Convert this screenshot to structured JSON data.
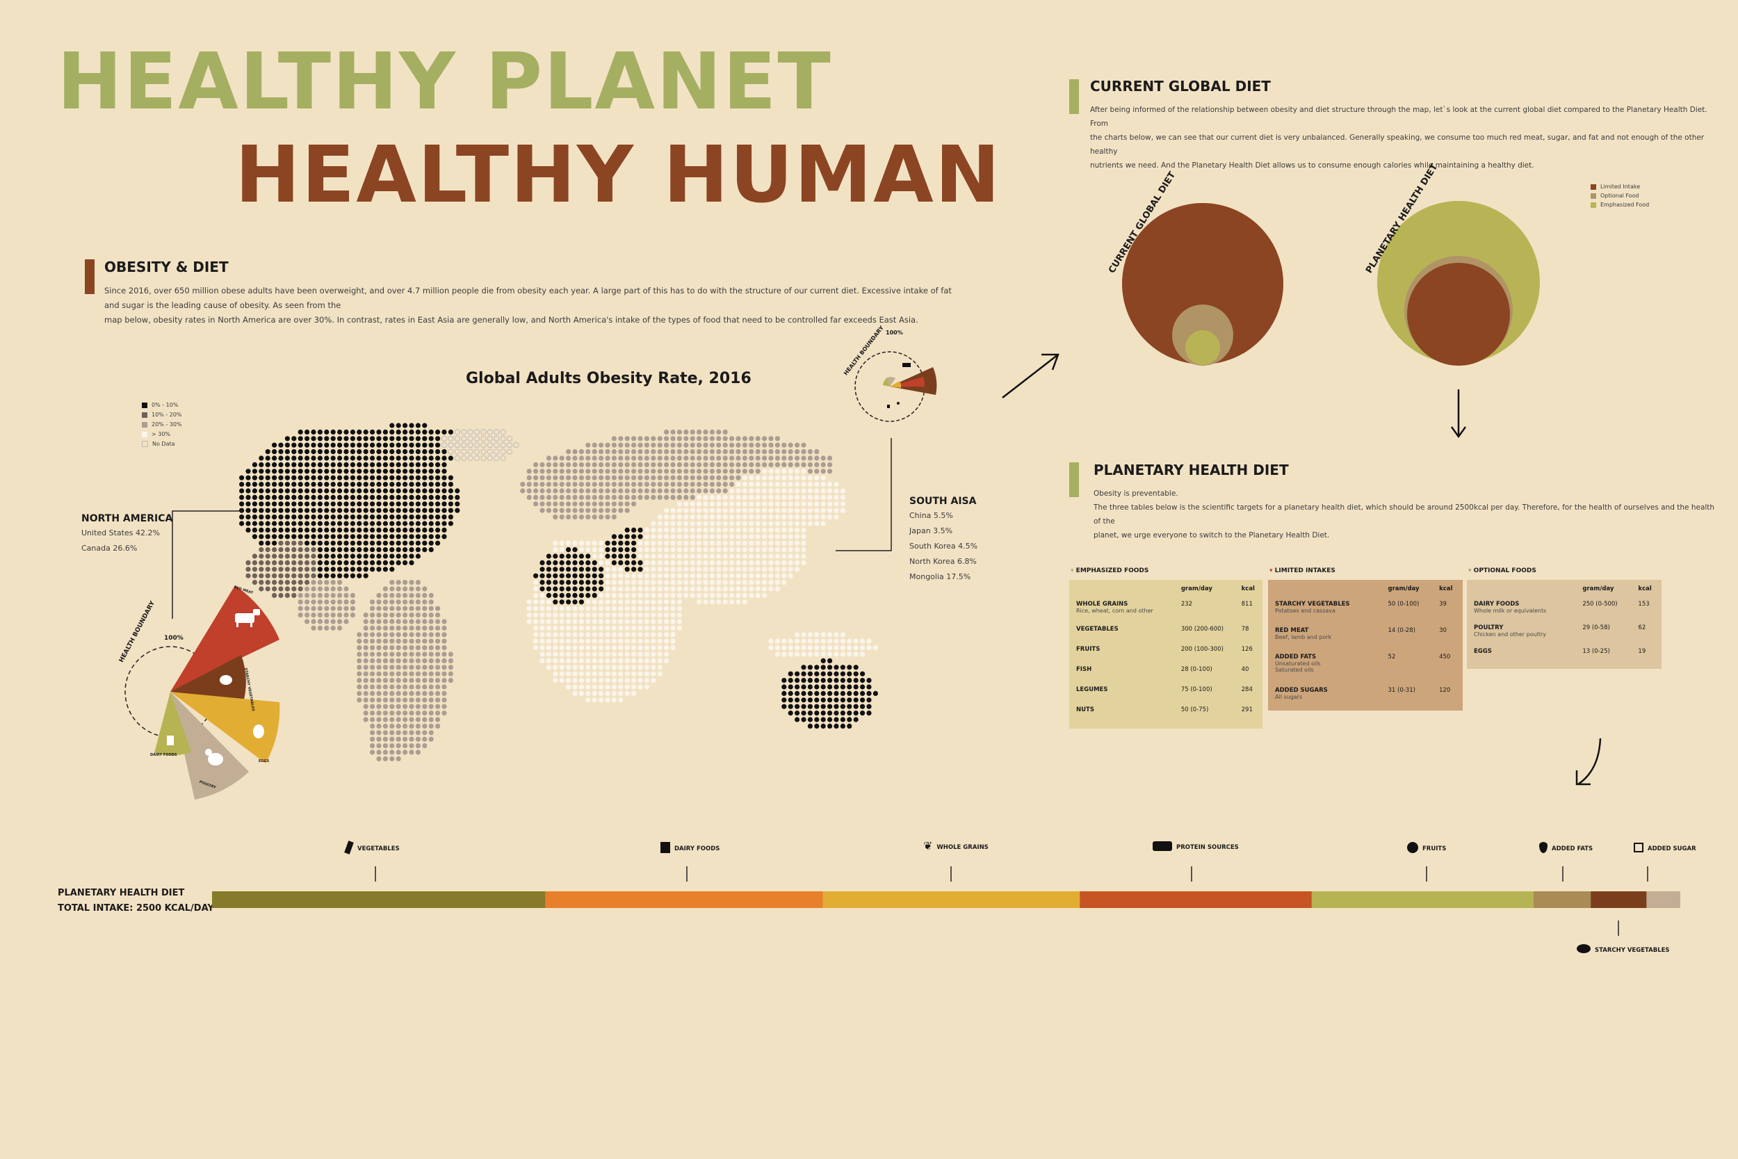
{
  "title": {
    "line1": "HEALTHY PLANET",
    "line2": "HEALTHY HUMAN"
  },
  "colors": {
    "green": "#a5af62",
    "brown": "#8b4522",
    "background": "#f2e2c4",
    "olive": "#b8b455",
    "tan": "#b09466"
  },
  "obesity": {
    "heading": "OBESITY & DIET",
    "text1": "Since 2016, over 650 million obese adults have been overweight, and over 4.7 million people die from obesity each year. A large part of this has to do with the structure of our current diet. Excessive intake of fat and sugar is the leading cause of obesity. As seen from the",
    "text2": "map below, obesity rates in North America are over 30%. In contrast, rates in East Asia are generally low, and North America's intake of the types of food that need to be controlled far exceeds East Asia."
  },
  "map": {
    "title": "Global Adults Obesity Rate, 2016",
    "legend": [
      "0% - 10%",
      "10% - 20%",
      "20% - 30%",
      "> 30%",
      "No Data"
    ]
  },
  "north_america": {
    "label": "NORTH AMERICA",
    "items": [
      "United States 42.2%",
      "Canada 26.6%"
    ]
  },
  "south_asia": {
    "label": "SOUTH AISA",
    "items": [
      "China 5.5%",
      "Japan 3.5%",
      "South Korea 4.5%",
      "North Korea 6.8%",
      "Mongolia 17.5%"
    ]
  },
  "health_boundary": {
    "label": "HEALTH BOUNDARY",
    "pct": "100%"
  },
  "wedges": {
    "labels": [
      "RED MEAT",
      "STARCHY VEGETABLES",
      "EGGS",
      "POULTRY",
      "DAIRY FOODS"
    ],
    "values": [
      200,
      120,
      80,
      70,
      40
    ]
  },
  "current": {
    "heading": "CURRENT GLOBAL DIET",
    "text1": "After being informed of the relationship between obesity and diet structure through the map, let`s look at the current global diet compared to the Planetary Health Diet. From",
    "text2": "the charts below, we can see that our current diet is very unbalanced. Generally speaking, we consume too much red meat, sugar, and fat and not enough of the other healthy",
    "text3": "nutrients we need. And the Planetary Health Diet allows us to consume enough calories while maintaining a healthy diet.",
    "circle1": "CURRENT GLOBAL DIET",
    "circle2": "PLANETARY HEALTH DIET",
    "legend": [
      "Limited Intake",
      "Optional Food",
      "Emphasized Food"
    ]
  },
  "phd": {
    "heading": "PLANETARY HEALTH DIET",
    "sub": "Obesity is preventable.",
    "text1": "The three tables below is the scientific targets for a planetary health diet, which should be around 2500kcal per day. Therefore, for the health of ourselves and the health of the",
    "text2": "planet, we urge everyone to switch to the Planetary Health Diet."
  },
  "tables": {
    "head_g": "gram/day",
    "head_k": "kcal",
    "emphasized": {
      "title": "EMPHASIZED FOODS",
      "rows": [
        {
          "name": "WHOLE GRAINS",
          "sub": "Rice, wheat, corn and other",
          "g": "232",
          "k": "811"
        },
        {
          "name": "VEGETABLES",
          "sub": "",
          "g": "300 (200-600)",
          "k": "78"
        },
        {
          "name": "FRUITS",
          "sub": "",
          "g": "200 (100-300)",
          "k": "126"
        },
        {
          "name": "FISH",
          "sub": "",
          "g": "28 (0-100)",
          "k": "40"
        },
        {
          "name": "LEGUMES",
          "sub": "",
          "g": "75 (0-100)",
          "k": "284"
        },
        {
          "name": "NUTS",
          "sub": "",
          "g": "50 (0-75)",
          "k": "291"
        }
      ]
    },
    "limited": {
      "title": "LIMITED INTAKES",
      "rows": [
        {
          "name": "STARCHY VEGETABLES",
          "sub": "Potatoes and cassava",
          "g": "50 (0-100)",
          "k": "39"
        },
        {
          "name": "RED MEAT",
          "sub": "Beef, lamb and pork",
          "g": "14 (0-28)",
          "k": "30"
        },
        {
          "name": "ADDED FATS",
          "sub": "Unsaturated oils",
          "sub2": "Saturated oils",
          "g": "52",
          "k": "450"
        },
        {
          "name": "ADDED SUGARS",
          "sub": "All sugars",
          "g": "31 (0-31)",
          "k": "120"
        }
      ]
    },
    "optional": {
      "title": "OPTIONAL FOODS",
      "rows": [
        {
          "name": "DAIRY FOODS",
          "sub": "Whole milk or equivalents",
          "g": "250 (0-500)",
          "k": "153"
        },
        {
          "name": "POULTRY",
          "sub": "Chicken and other poultry",
          "g": "29 (0-58)",
          "k": "62"
        },
        {
          "name": "EGGS",
          "sub": "",
          "g": "13 (0-25)",
          "k": "19"
        }
      ]
    }
  },
  "intake": {
    "label1": "PLANETARY HEALTH DIET",
    "label2": "TOTAL INTAKE: 2500 KCAL/DAY",
    "categories": [
      "VEGETABLES",
      "DAIRY FOODS",
      "WHOLE GRAINS",
      "PROTEIN SOURCES",
      "FRUITS",
      "ADDED FATS",
      "ADDED SUGAR",
      "STARCHY VEGETABLES"
    ]
  },
  "chart_data": {
    "type": "bar",
    "stacked": true,
    "orientation": "horizontal",
    "title": "PLANETARY HEALTH DIET",
    "series": [
      {
        "name": "VEGETABLES",
        "value": 0.227,
        "color": "#857b2a"
      },
      {
        "name": "DAIRY FOODS",
        "value": 0.189,
        "color": "#e87f2b"
      },
      {
        "name": "WHOLE GRAINS",
        "value": 0.175,
        "color": "#e2ad33"
      },
      {
        "name": "PROTEIN SOURCES",
        "value": 0.158,
        "color": "#c65523"
      },
      {
        "name": "FRUITS",
        "value": 0.151,
        "color": "#b6b353"
      },
      {
        "name": "ADDED FATS",
        "value": 0.039,
        "color": "#aa8a55"
      },
      {
        "name": "STARCHY VEGETABLES",
        "value": 0.038,
        "color": "#7a3e1d"
      },
      {
        "name": "ADDED SUGAR",
        "value": 0.023,
        "color": "#c1ae94"
      }
    ]
  }
}
